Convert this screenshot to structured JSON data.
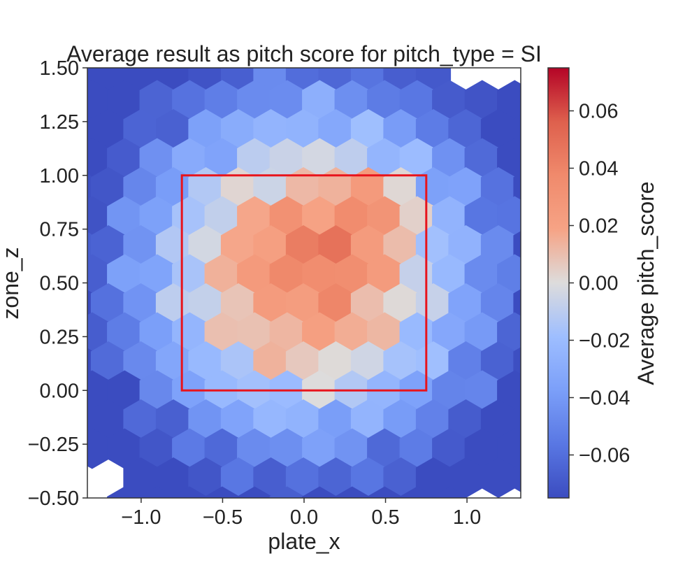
{
  "chart_data": {
    "type": "heatmap",
    "subtype": "hexbin",
    "title": "Average result as pitch score for pitch_type = SI",
    "xlabel": "plate_x",
    "ylabel": "zone_z",
    "xlim": [
      -1.33,
      1.33
    ],
    "ylim": [
      -0.5,
      1.5
    ],
    "x_ticks": [
      {
        "value": -1.0,
        "label": "−1.0"
      },
      {
        "value": -0.5,
        "label": "−0.5"
      },
      {
        "value": 0.0,
        "label": "0.0"
      },
      {
        "value": 0.5,
        "label": "0.5"
      },
      {
        "value": 1.0,
        "label": "1.0"
      }
    ],
    "y_ticks": [
      {
        "value": -0.5,
        "label": "−0.50"
      },
      {
        "value": -0.25,
        "label": "−0.25"
      },
      {
        "value": 0.0,
        "label": "0.00"
      },
      {
        "value": 0.25,
        "label": "0.25"
      },
      {
        "value": 0.5,
        "label": "0.50"
      },
      {
        "value": 0.75,
        "label": "0.75"
      },
      {
        "value": 1.0,
        "label": "1.00"
      },
      {
        "value": 1.25,
        "label": "1.25"
      },
      {
        "value": 1.5,
        "label": "1.50"
      }
    ],
    "colorbar": {
      "label": "Average pitch_score",
      "colormap": "coolwarm",
      "vmin": -0.075,
      "vmax": 0.075,
      "ticks": [
        {
          "value": 0.06,
          "label": "0.06"
        },
        {
          "value": 0.04,
          "label": "0.04"
        },
        {
          "value": 0.02,
          "label": "0.02"
        },
        {
          "value": 0.0,
          "label": "0.00"
        },
        {
          "value": -0.02,
          "label": "−0.02"
        },
        {
          "value": -0.04,
          "label": "−0.04"
        },
        {
          "value": -0.06,
          "label": "−0.06"
        }
      ]
    },
    "strike_zone": {
      "x": [
        -0.75,
        0.75
      ],
      "y": [
        0.0,
        1.0
      ],
      "color": "#e8141c"
    },
    "grid": false
  }
}
